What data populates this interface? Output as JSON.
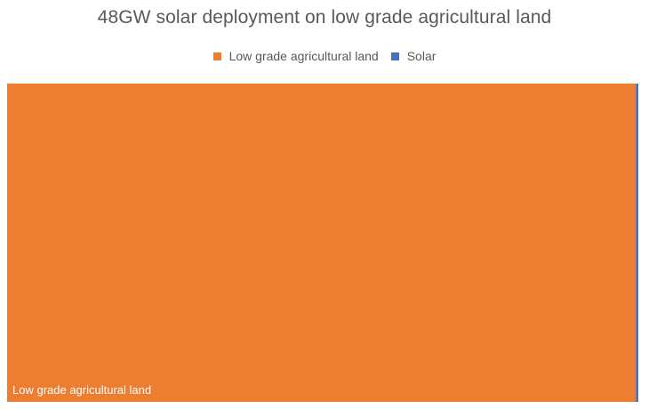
{
  "chart_data": {
    "type": "treemap",
    "title": "48GW solar deployment on low grade agricultural land",
    "legend_position": "top",
    "series": [
      {
        "name": "Low grade agricultural land",
        "value": 99.6,
        "color": "#ED7D31",
        "label": "Low grade agricultural land"
      },
      {
        "name": "Solar",
        "value": 0.4,
        "color": "#4472C4",
        "label": ""
      }
    ]
  }
}
